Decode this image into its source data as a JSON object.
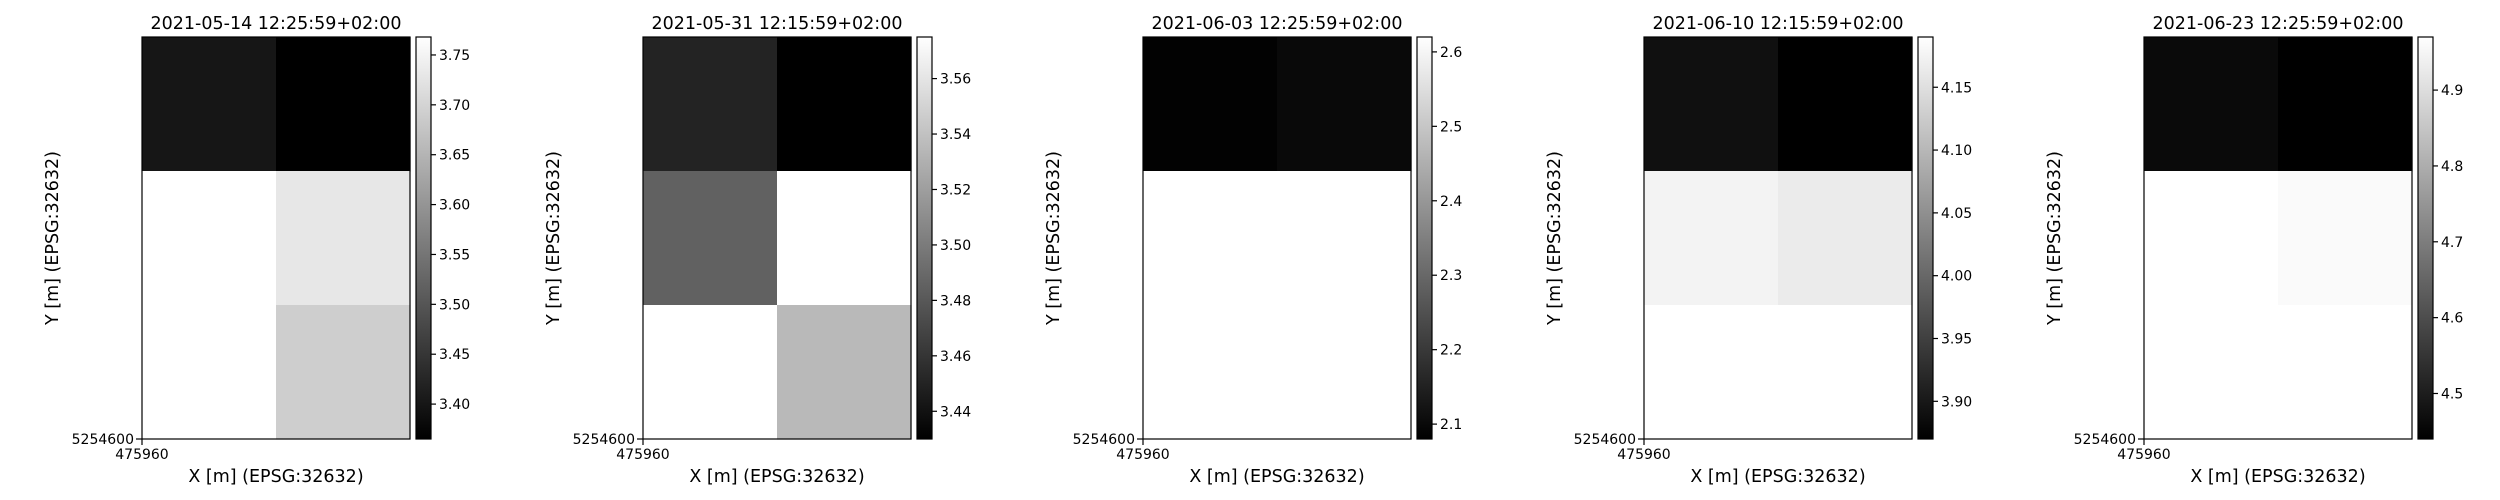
{
  "chart_data": [
    {
      "type": "heatmap",
      "title": "2021-05-14 12:25:59+02:00",
      "xlabel": "X [m] (EPSG:32632)",
      "ylabel": "Y [m] (EPSG:32632)",
      "x_ticks": [
        "475960"
      ],
      "y_ticks": [
        "5254600"
      ],
      "colormap": "gray",
      "vmin": 3.365,
      "vmax": 3.768,
      "colorbar_ticks": [
        "3.40",
        "3.45",
        "3.50",
        "3.55",
        "3.60",
        "3.65",
        "3.70",
        "3.75"
      ],
      "cells": [
        [
          3.4,
          3.365
        ],
        [
          3.768,
          3.73
        ],
        [
          3.768,
          3.69
        ]
      ]
    },
    {
      "type": "heatmap",
      "title": "2021-05-31 12:15:59+02:00",
      "xlabel": "X [m] (EPSG:32632)",
      "ylabel": "Y [m] (EPSG:32632)",
      "x_ticks": [
        "475960"
      ],
      "y_ticks": [
        "5254600"
      ],
      "colormap": "gray",
      "vmin": 3.43,
      "vmax": 3.575,
      "colorbar_ticks": [
        "3.44",
        "3.46",
        "3.48",
        "3.50",
        "3.52",
        "3.54",
        "3.56"
      ],
      "cells": [
        [
          3.45,
          3.43
        ],
        [
          3.485,
          3.575
        ],
        [
          3.575,
          3.535
        ]
      ]
    },
    {
      "type": "heatmap",
      "title": "2021-06-03 12:25:59+02:00",
      "xlabel": "X [m] (EPSG:32632)",
      "ylabel": "Y [m] (EPSG:32632)",
      "x_ticks": [
        "475960"
      ],
      "y_ticks": [
        "5254600"
      ],
      "colormap": "gray",
      "vmin": 2.08,
      "vmax": 2.62,
      "colorbar_ticks": [
        "2.1",
        "2.2",
        "2.3",
        "2.4",
        "2.5",
        "2.6"
      ],
      "cells": [
        [
          2.085,
          2.1
        ],
        [
          2.62,
          2.62
        ],
        [
          2.62,
          2.62
        ]
      ]
    },
    {
      "type": "heatmap",
      "title": "2021-06-10 12:15:59+02:00",
      "xlabel": "X [m] (EPSG:32632)",
      "ylabel": "Y [m] (EPSG:32632)",
      "x_ticks": [
        "475960"
      ],
      "y_ticks": [
        "5254600"
      ],
      "colormap": "gray",
      "vmin": 3.87,
      "vmax": 4.19,
      "colorbar_ticks": [
        "3.90",
        "3.95",
        "4.00",
        "4.05",
        "4.10",
        "4.15"
      ],
      "cells": [
        [
          3.89,
          3.87
        ],
        [
          4.175,
          4.165
        ],
        [
          4.19,
          4.19
        ]
      ]
    },
    {
      "type": "heatmap",
      "title": "2021-06-23 12:25:59+02:00",
      "xlabel": "X [m] (EPSG:32632)",
      "ylabel": "Y [m] (EPSG:32632)",
      "x_ticks": [
        "475960"
      ],
      "y_ticks": [
        "5254600"
      ],
      "colormap": "gray",
      "vmin": 4.44,
      "vmax": 4.97,
      "colorbar_ticks": [
        "4.5",
        "4.6",
        "4.7",
        "4.8",
        "4.9"
      ],
      "cells": [
        [
          4.46,
          4.44
        ],
        [
          4.97,
          4.96
        ],
        [
          4.97,
          4.97
        ]
      ]
    }
  ]
}
